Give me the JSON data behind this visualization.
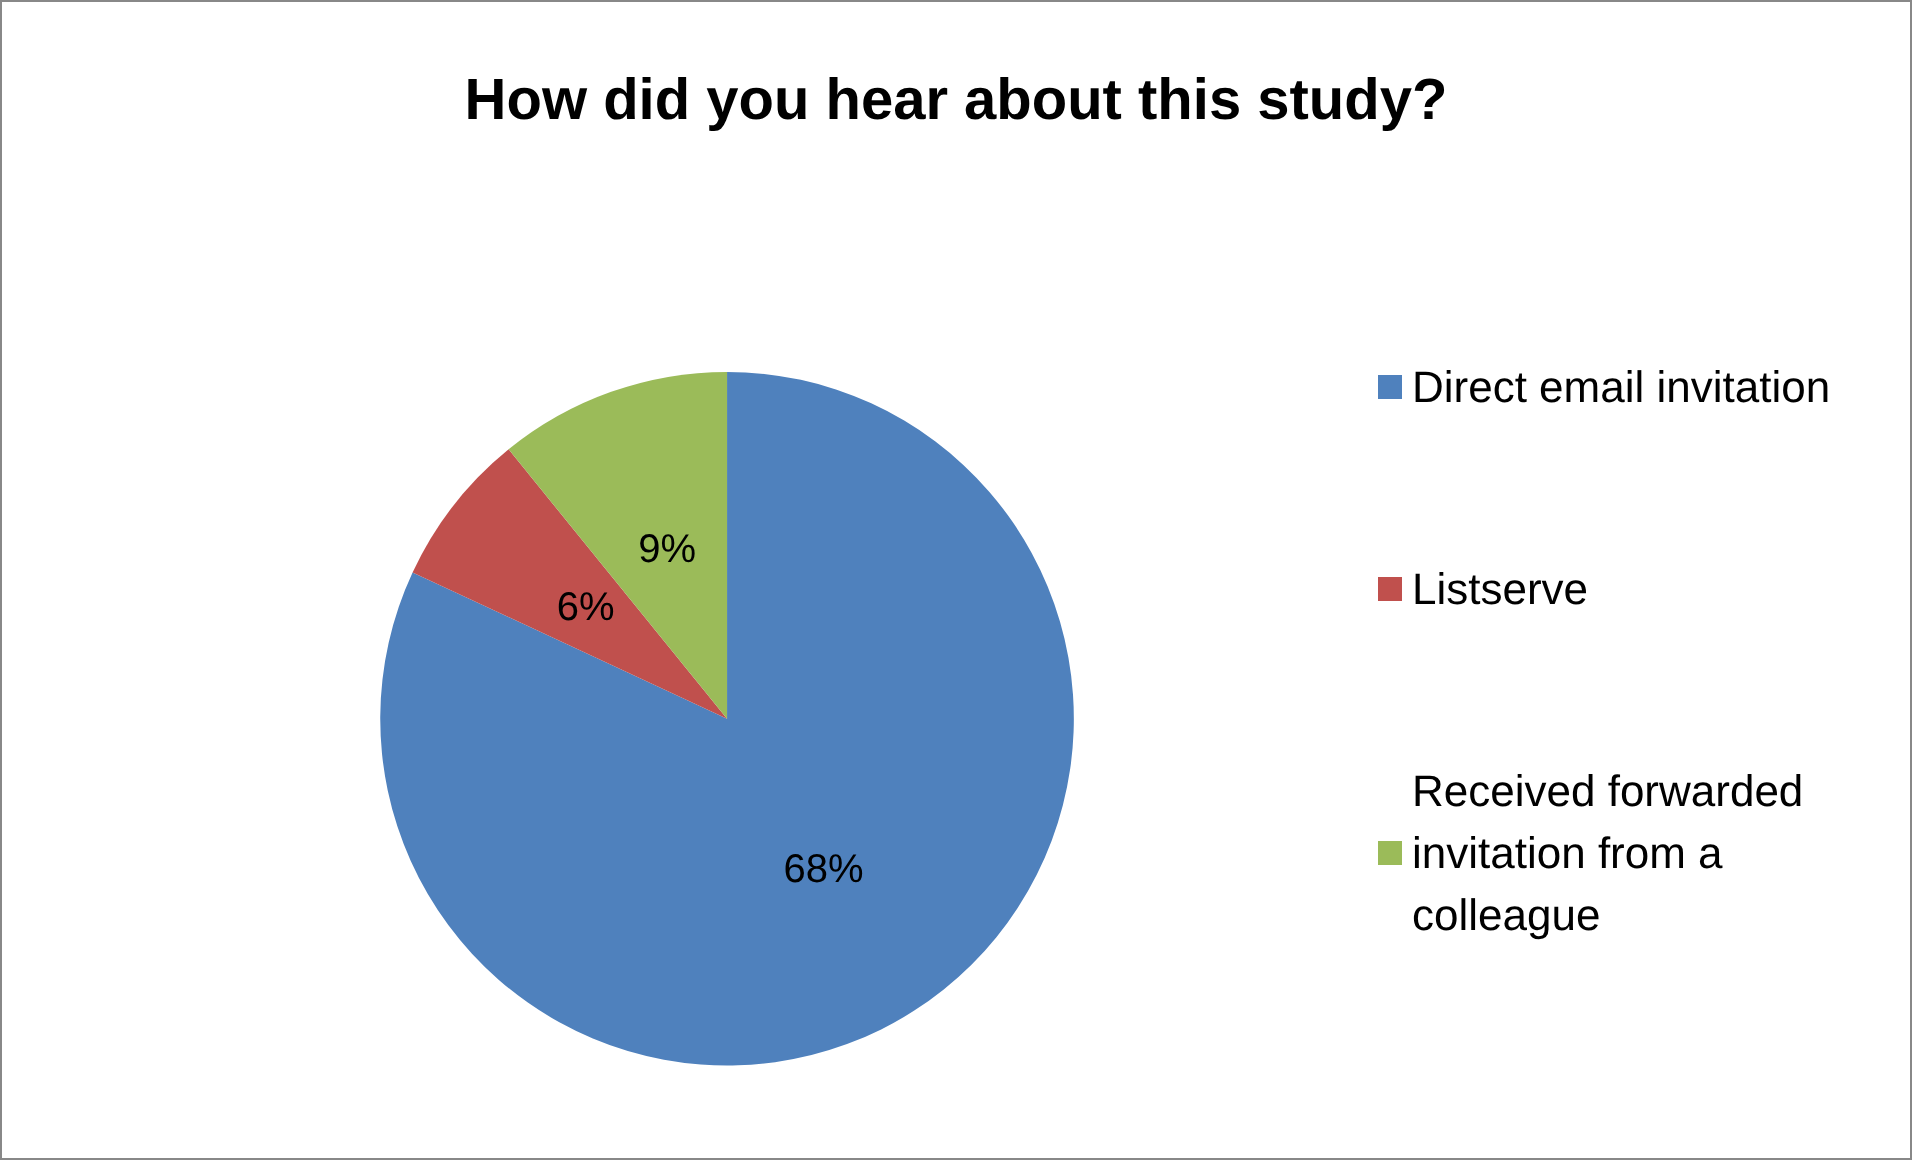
{
  "chart_data": {
    "type": "pie",
    "title": "How did you hear about this study?",
    "categories": [
      "Direct email invitation",
      "Listserve",
      "Received forwarded invitation from a colleague"
    ],
    "values": [
      68,
      6,
      9
    ],
    "colors": [
      "#4f81bd",
      "#c0504d",
      "#9bbb59"
    ],
    "value_labels": [
      "68%",
      "6%",
      "9%"
    ],
    "legend": "right"
  }
}
